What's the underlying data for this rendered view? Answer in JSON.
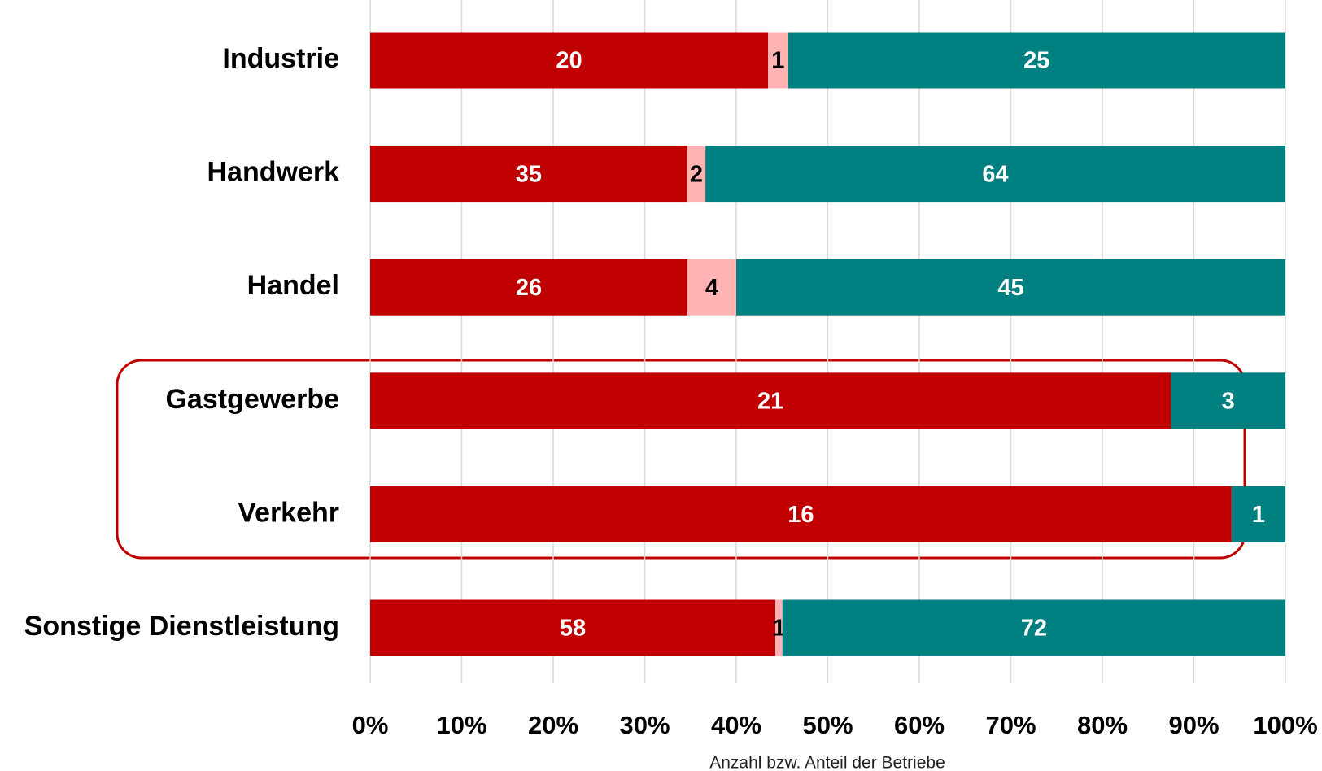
{
  "chart_data": {
    "type": "stacked_bar_percent",
    "orientation": "horizontal",
    "x_label": "Anzahl bzw. Anteil der Betriebe",
    "categories": [
      "Industrie",
      "Handwerk",
      "Handel",
      "Gastgewerbe",
      "Verkehr",
      "Sonstige Dienstleistung"
    ],
    "series": [
      {
        "color": "#c00000",
        "label_color": "#ffffff",
        "values": [
          20,
          35,
          26,
          21,
          16,
          58
        ]
      },
      {
        "color": "#ffb3b3",
        "label_color": "#000000",
        "values": [
          1,
          2,
          4,
          null,
          null,
          1
        ]
      },
      {
        "color": "#008080",
        "label_color": "#ffffff",
        "values": [
          25,
          64,
          45,
          3,
          1,
          72
        ]
      }
    ],
    "xlim": [
      0,
      100
    ],
    "xticks": [
      {
        "value": 0,
        "label": "0%"
      },
      {
        "value": 10,
        "label": "10%"
      },
      {
        "value": 20,
        "label": "20%"
      },
      {
        "value": 30,
        "label": "30%"
      },
      {
        "value": 40,
        "label": "40%"
      },
      {
        "value": 50,
        "label": "50%"
      },
      {
        "value": 60,
        "label": "60%"
      },
      {
        "value": 70,
        "label": "70%"
      },
      {
        "value": 80,
        "label": "80%"
      },
      {
        "value": 90,
        "label": "90%"
      },
      {
        "value": 100,
        "label": "100%"
      }
    ],
    "grid": true
  }
}
